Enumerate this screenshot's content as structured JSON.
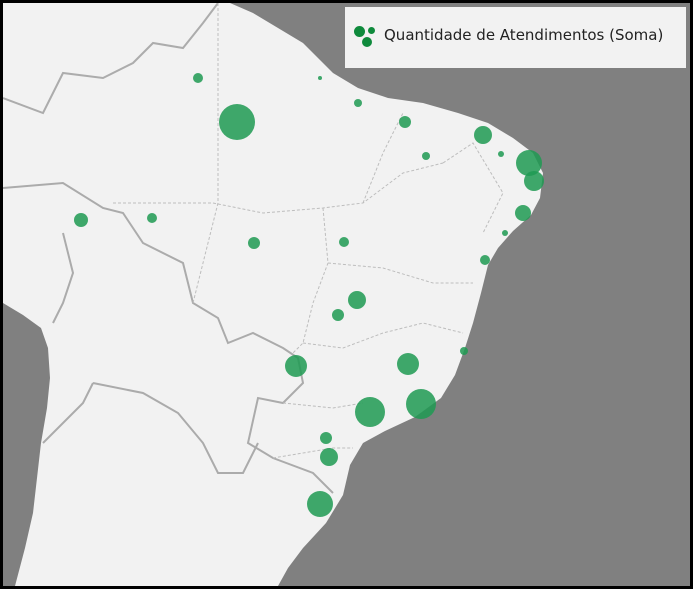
{
  "legend": {
    "label": "Quantidade de Atendimentos (Soma)",
    "icon": "bubble-cluster-icon",
    "color": "#0f8a3c"
  },
  "map": {
    "land_color": "#f2f2f2",
    "ocean_color": "#808080",
    "bubble_color": "#1f9a52"
  }
}
